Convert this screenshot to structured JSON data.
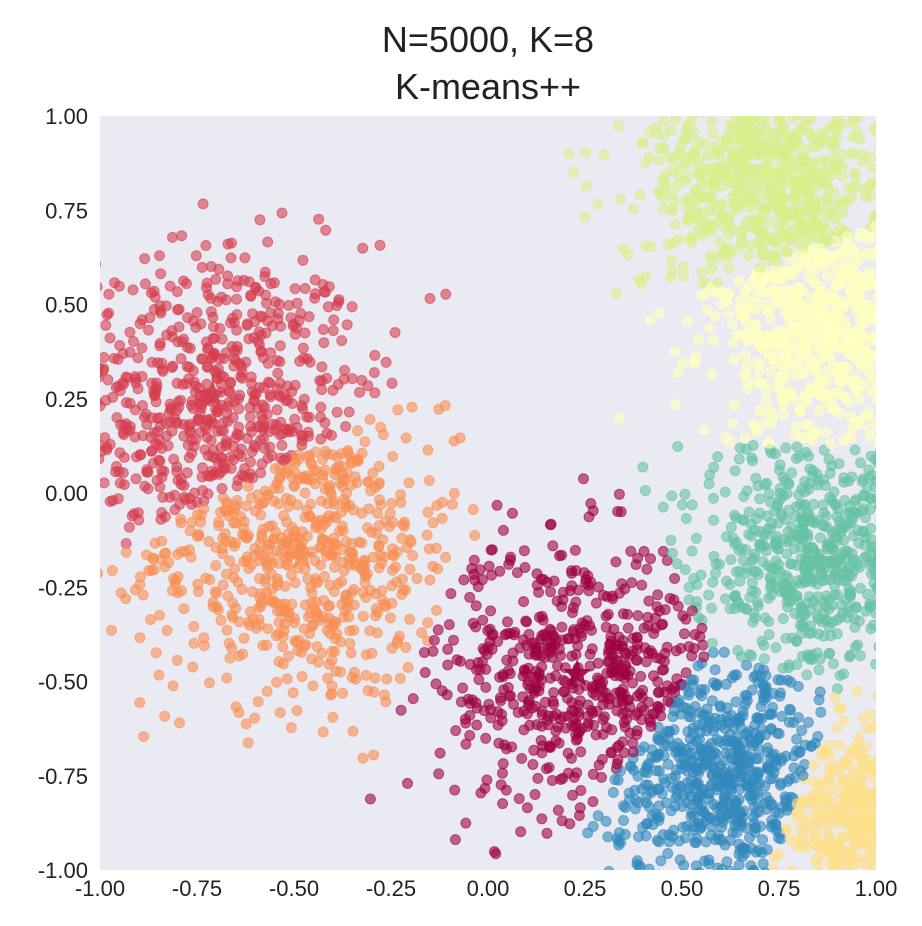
{
  "chart_data": {
    "type": "scatter",
    "title": [
      "N=5000, K=8",
      "K-means++"
    ],
    "xlabel": "",
    "ylabel": "",
    "xlim": [
      -1.0,
      1.0
    ],
    "ylim": [
      -1.0,
      1.0
    ],
    "xticks": [
      "-1.00",
      "-0.75",
      "-0.50",
      "-0.25",
      "0.00",
      "0.25",
      "0.50",
      "0.75",
      "1.00"
    ],
    "yticks": [
      "1.00",
      "0.75",
      "0.50",
      "0.25",
      "0.00",
      "-0.25",
      "-0.50",
      "-0.75",
      "-1.00"
    ],
    "grid": false,
    "legend": "none",
    "background_color": "#eaeaf2",
    "point_opacity": 0.6,
    "total_points": 5000,
    "clusters": [
      {
        "color": "#d53e4f",
        "center": [
          -0.71,
          0.26
        ],
        "spread": 0.2,
        "count": 650
      },
      {
        "color": "#f98e52",
        "center": [
          -0.48,
          -0.17
        ],
        "spread": 0.2,
        "count": 650
      },
      {
        "color": "#9e0142",
        "center": [
          0.23,
          -0.48
        ],
        "spread": 0.18,
        "count": 600
      },
      {
        "color": "#3288bd",
        "center": [
          0.62,
          -0.76
        ],
        "spread": 0.15,
        "count": 650
      },
      {
        "color": "#fee08b",
        "center": [
          0.96,
          -0.88
        ],
        "spread": 0.1,
        "count": 350
      },
      {
        "color": "#66c2a5",
        "center": [
          0.85,
          -0.18
        ],
        "spread": 0.15,
        "count": 650
      },
      {
        "color": "#ffffbf",
        "center": [
          0.88,
          0.42
        ],
        "spread": 0.15,
        "count": 700
      },
      {
        "color": "#d9ef8b",
        "center": [
          0.72,
          0.85
        ],
        "spread": 0.16,
        "count": 750
      }
    ]
  }
}
